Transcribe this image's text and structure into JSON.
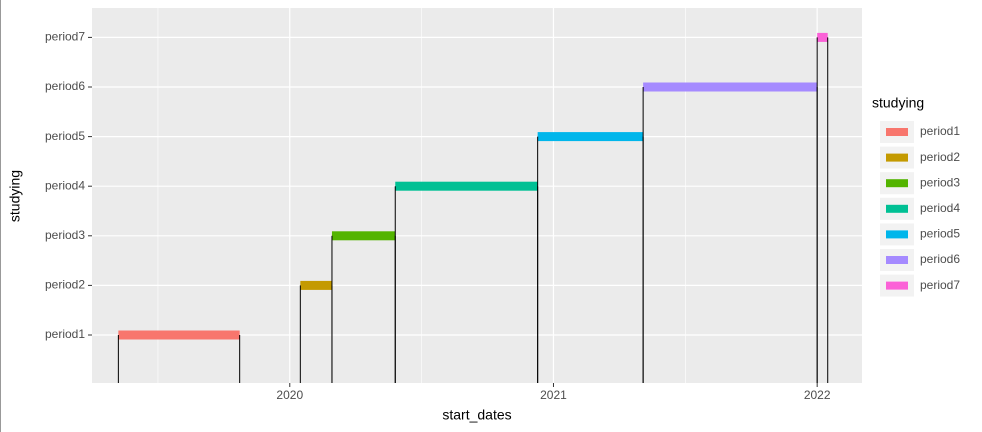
{
  "chart_data": {
    "type": "segment",
    "xlabel": "start_dates",
    "ylabel": "studying",
    "categories": [
      "period1",
      "period2",
      "period3",
      "period4",
      "period5",
      "period6",
      "period7"
    ],
    "series": [
      {
        "name": "period1",
        "color": "#F8766D",
        "x": [
          2019.35,
          2019.81
        ]
      },
      {
        "name": "period2",
        "color": "#C49A00",
        "x": [
          2020.04,
          2020.16
        ]
      },
      {
        "name": "period3",
        "color": "#53B400",
        "x": [
          2020.16,
          2020.4
        ]
      },
      {
        "name": "period4",
        "color": "#00C094",
        "x": [
          2020.4,
          2020.94
        ]
      },
      {
        "name": "period5",
        "color": "#00B6EB",
        "x": [
          2020.94,
          2021.34
        ]
      },
      {
        "name": "period6",
        "color": "#A58AFF",
        "x": [
          2021.34,
          2022.0
        ]
      },
      {
        "name": "period7",
        "color": "#FB61D7",
        "x": [
          2022.0,
          2022.04
        ]
      }
    ],
    "xlim": [
      2019.25,
      2022.17
    ],
    "xticks": [
      2020,
      2021,
      2022
    ],
    "legend_title": "studying",
    "legend": "right",
    "grid": true
  }
}
